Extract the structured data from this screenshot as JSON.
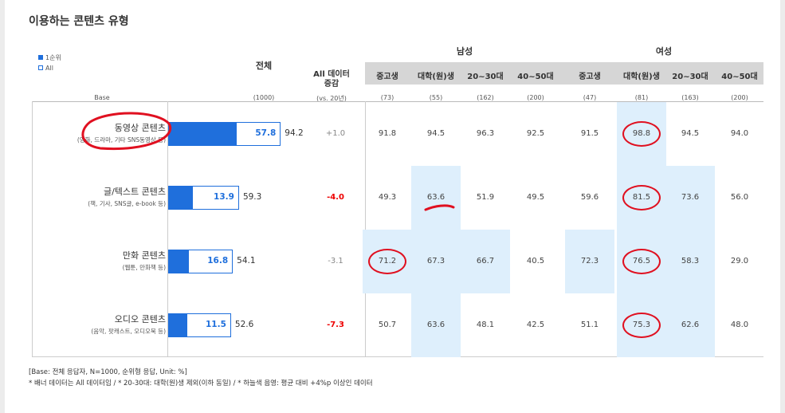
{
  "title": "이용하는 콘텐츠 유형",
  "legend": {
    "first": "1순위",
    "all": "All"
  },
  "headers": {
    "base": "Base",
    "total": "전체",
    "total_base": "(1000)",
    "change_line1": "All 데이터",
    "change_line2": "증감",
    "change_base": "(vs. 20년)",
    "male": "남성",
    "female": "여성",
    "subgroups": [
      "중고생",
      "대학(원)생",
      "20~30대",
      "40~50대",
      "중고생",
      "대학(원)생",
      "20~30대",
      "40~50대"
    ],
    "subgroup_bases": [
      "(73)",
      "(55)",
      "(162)",
      "(200)",
      "(47)",
      "(81)",
      "(163)",
      "(200)"
    ]
  },
  "chart_data": {
    "type": "bar",
    "categories": [
      "동영상 콘텐츠",
      "글/텍스트 콘텐츠",
      "만화 콘텐츠",
      "오디오 콘텐츠"
    ],
    "descriptions": [
      "(영화, 드라마, 기타 SNS동영상 등)",
      "(책, 기사, SNS글, e-book 등)",
      "(웹툰, 만화책 등)",
      "(음악, 팟캐스트, 오디오북 등)"
    ],
    "series": [
      {
        "name": "1순위",
        "values": [
          57.8,
          13.9,
          16.8,
          11.5
        ]
      },
      {
        "name": "All",
        "values": [
          94.2,
          59.3,
          54.1,
          52.6
        ]
      }
    ],
    "changes": [
      "+1.0",
      "-4.0",
      "-3.1",
      "-7.3"
    ],
    "changes_negative_bold": [
      false,
      true,
      false,
      true
    ],
    "groups": [
      [
        91.8,
        94.5,
        96.3,
        92.5,
        91.5,
        98.8,
        94.5,
        94.0
      ],
      [
        49.3,
        63.6,
        51.9,
        49.5,
        59.6,
        81.5,
        73.6,
        56.0
      ],
      [
        71.2,
        67.3,
        66.7,
        40.5,
        72.3,
        76.5,
        58.3,
        29.0
      ],
      [
        50.7,
        63.6,
        48.1,
        42.5,
        51.1,
        75.3,
        62.6,
        48.0
      ]
    ],
    "highlighted": [
      [
        false,
        false,
        false,
        false,
        false,
        true,
        false,
        false
      ],
      [
        false,
        true,
        false,
        false,
        false,
        true,
        true,
        false
      ],
      [
        true,
        true,
        true,
        false,
        true,
        true,
        true,
        false
      ],
      [
        false,
        true,
        false,
        false,
        false,
        true,
        true,
        false
      ]
    ],
    "ylim": [
      0,
      100
    ]
  },
  "footnote": {
    "line1": "[Base: 전체 응답자, N=1000, 순위형 응답, Unit: %]",
    "line2": "* 배너 데이터는 All 데이터임 / * 20-30대: 대학(원)생 제외(이하 동일) / * 하늘색 음영: 평균 대비 +4%p 이상인 데이터"
  },
  "colors": {
    "accent": "#1f6fdc",
    "highlight": "#deeffc",
    "negative": "#e00000",
    "annotation": "#e01020"
  }
}
